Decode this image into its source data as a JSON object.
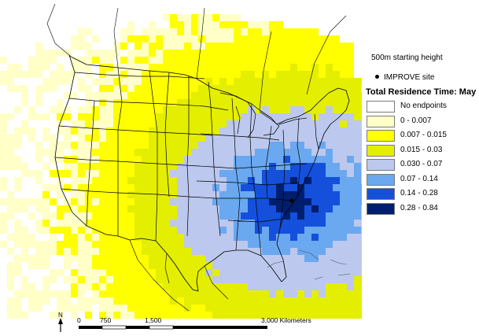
{
  "legend": {
    "starting_height": "500m starting height",
    "site_label": "IMPROVE site",
    "title": "Total Residence Time: May",
    "classes": [
      {
        "label": "No endpoints",
        "color": "#ffffff"
      },
      {
        "label": "0 - 0.007",
        "color": "#ffffc8"
      },
      {
        "label": "0.007 - 0.015",
        "color": "#ffff00"
      },
      {
        "label": "0.015 - 0.03",
        "color": "#e4ee00"
      },
      {
        "label": "0.030 - 0.07",
        "color": "#bcc8ee"
      },
      {
        "label": "0.07 - 0.14",
        "color": "#6aa8f0"
      },
      {
        "label": "0.14 - 0.28",
        "color": "#1450dc"
      },
      {
        "label": "0.28 - 0.84",
        "color": "#001e6e"
      }
    ]
  },
  "north_label": "N",
  "scale": {
    "ticks": [
      "0",
      "750",
      "1,500",
      "3,000 Kilometers"
    ]
  },
  "colors": {
    "ocean": "#ffffff",
    "boundaries": "#000000",
    "coast": "#555555"
  }
}
